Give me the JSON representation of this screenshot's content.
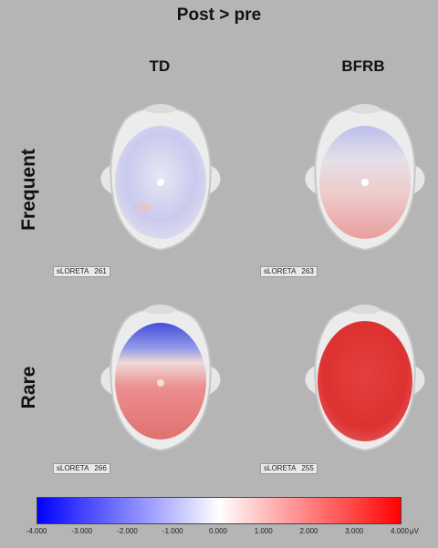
{
  "title": "Post > pre",
  "columns": [
    "TD",
    "BFRB"
  ],
  "rows": [
    "Frequent",
    "Rare"
  ],
  "panels": [
    {
      "method": "sLORETA",
      "number": "261",
      "pattern": "blue-weak"
    },
    {
      "method": "sLORETA",
      "number": "263",
      "pattern": "blue-top-red-low"
    },
    {
      "method": "sLORETA",
      "number": "266",
      "pattern": "blue-top-red-strong"
    },
    {
      "method": "sLORETA",
      "number": "255",
      "pattern": "red-strong"
    }
  ],
  "colorbar": {
    "ticks": [
      "-4.000",
      "-3.000",
      "-2.000",
      "-1.000",
      "0.000",
      "1.000",
      "2.000",
      "3.000",
      "4.000"
    ],
    "unit": "µV",
    "min_color": "#0000ff",
    "zero_color": "#ffffff",
    "max_color": "#ff0000"
  }
}
